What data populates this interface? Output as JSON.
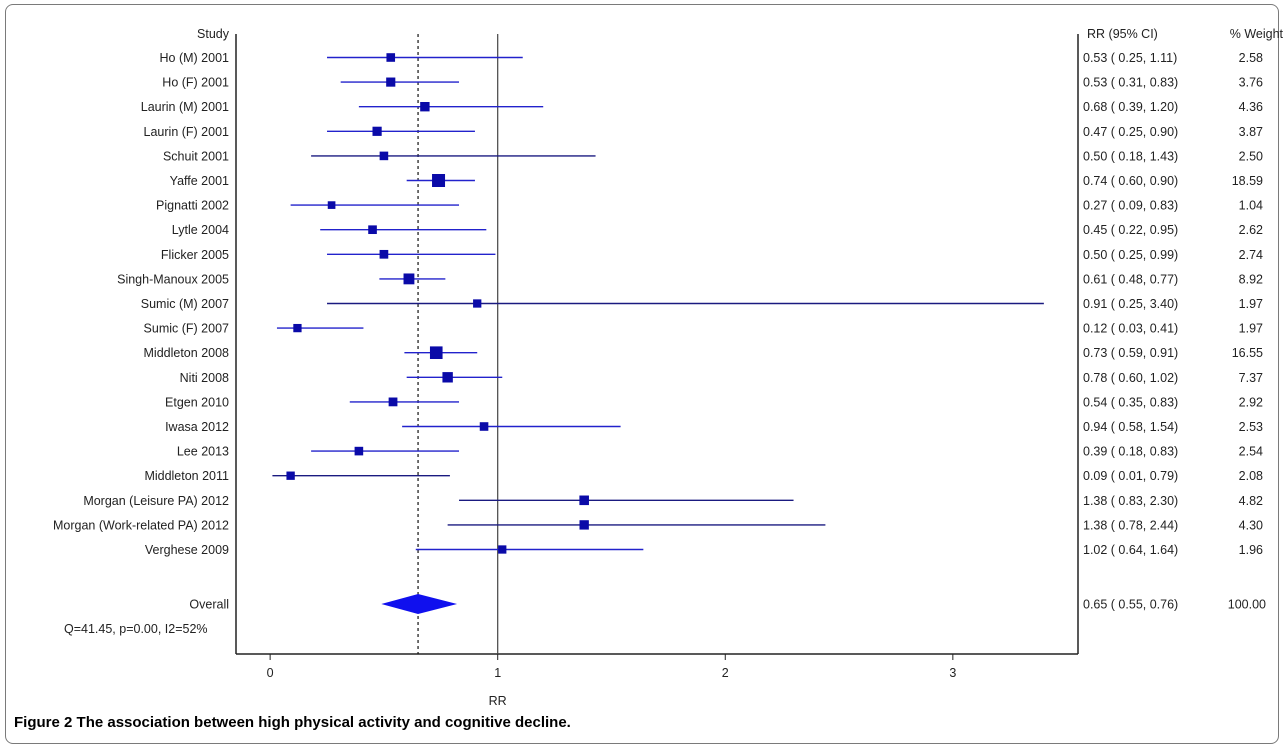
{
  "chart_data": {
    "type": "forest",
    "study_header": "Study",
    "rr_header": "RR (95% CI)",
    "weight_header": "% Weight",
    "xlabel": "RR",
    "xticks": [
      0,
      1,
      2,
      3
    ],
    "xlim": [
      -0.15,
      3.55
    ],
    "null_line": 1,
    "pooled_line": 0.65,
    "colors": {
      "ci": "#2222cc",
      "ci_dark": "#1a1a80",
      "marker": "#0a0aa8",
      "diamond": "#1010ee",
      "axis": "#222222"
    },
    "studies": [
      {
        "label": "Ho (M) 2001",
        "rr": 0.53,
        "lo": 0.25,
        "hi": 1.11,
        "ci_text": "0.53 ( 0.25, 1.11)",
        "weight": "2.58"
      },
      {
        "label": "Ho (F) 2001",
        "rr": 0.53,
        "lo": 0.31,
        "hi": 0.83,
        "ci_text": "0.53 ( 0.31, 0.83)",
        "weight": "3.76"
      },
      {
        "label": "Laurin (M) 2001",
        "rr": 0.68,
        "lo": 0.39,
        "hi": 1.2,
        "ci_text": "0.68 ( 0.39, 1.20)",
        "weight": "4.36"
      },
      {
        "label": "Laurin (F) 2001",
        "rr": 0.47,
        "lo": 0.25,
        "hi": 0.9,
        "ci_text": "0.47 ( 0.25, 0.90)",
        "weight": "3.87"
      },
      {
        "label": "Schuit 2001",
        "rr": 0.5,
        "lo": 0.18,
        "hi": 1.43,
        "ci_text": "0.50 ( 0.18, 1.43)",
        "weight": "2.50"
      },
      {
        "label": "Yaffe 2001",
        "rr": 0.74,
        "lo": 0.6,
        "hi": 0.9,
        "ci_text": "0.74 ( 0.60, 0.90)",
        "weight": "18.59"
      },
      {
        "label": "Pignatti 2002",
        "rr": 0.27,
        "lo": 0.09,
        "hi": 0.83,
        "ci_text": "0.27 ( 0.09, 0.83)",
        "weight": "1.04"
      },
      {
        "label": "Lytle 2004",
        "rr": 0.45,
        "lo": 0.22,
        "hi": 0.95,
        "ci_text": "0.45 ( 0.22, 0.95)",
        "weight": "2.62"
      },
      {
        "label": "Flicker 2005",
        "rr": 0.5,
        "lo": 0.25,
        "hi": 0.99,
        "ci_text": "0.50 ( 0.25, 0.99)",
        "weight": "2.74"
      },
      {
        "label": "Singh-Manoux 2005",
        "rr": 0.61,
        "lo": 0.48,
        "hi": 0.77,
        "ci_text": "0.61 ( 0.48, 0.77)",
        "weight": "8.92"
      },
      {
        "label": "Sumic (M) 2007",
        "rr": 0.91,
        "lo": 0.25,
        "hi": 3.4,
        "ci_text": "0.91 ( 0.25, 3.40)",
        "weight": "1.97"
      },
      {
        "label": "Sumic (F) 2007",
        "rr": 0.12,
        "lo": 0.03,
        "hi": 0.41,
        "ci_text": "0.12 ( 0.03, 0.41)",
        "weight": "1.97"
      },
      {
        "label": "Middleton 2008",
        "rr": 0.73,
        "lo": 0.59,
        "hi": 0.91,
        "ci_text": "0.73 ( 0.59, 0.91)",
        "weight": "16.55"
      },
      {
        "label": "Niti 2008",
        "rr": 0.78,
        "lo": 0.6,
        "hi": 1.02,
        "ci_text": "0.78 ( 0.60, 1.02)",
        "weight": "7.37"
      },
      {
        "label": "Etgen 2010",
        "rr": 0.54,
        "lo": 0.35,
        "hi": 0.83,
        "ci_text": "0.54 ( 0.35, 0.83)",
        "weight": "2.92"
      },
      {
        "label": "Iwasa 2012",
        "rr": 0.94,
        "lo": 0.58,
        "hi": 1.54,
        "ci_text": "0.94 ( 0.58, 1.54)",
        "weight": "2.53"
      },
      {
        "label": "Lee 2013",
        "rr": 0.39,
        "lo": 0.18,
        "hi": 0.83,
        "ci_text": "0.39 ( 0.18, 0.83)",
        "weight": "2.54"
      },
      {
        "label": "Middleton 2011",
        "rr": 0.09,
        "lo": 0.01,
        "hi": 0.79,
        "ci_text": "0.09 ( 0.01, 0.79)",
        "weight": "2.08"
      },
      {
        "label": "Morgan (Leisure PA) 2012",
        "rr": 1.38,
        "lo": 0.83,
        "hi": 2.3,
        "ci_text": "1.38 ( 0.83, 2.30)",
        "weight": "4.82"
      },
      {
        "label": "Morgan (Work-related PA) 2012",
        "rr": 1.38,
        "lo": 0.78,
        "hi": 2.44,
        "ci_text": "1.38 ( 0.78, 2.44)",
        "weight": "4.30"
      },
      {
        "label": "Verghese 2009",
        "rr": 1.02,
        "lo": 0.64,
        "hi": 1.64,
        "ci_text": "1.02 ( 0.64, 1.64)",
        "weight": "1.96"
      }
    ],
    "overall": {
      "label": "Overall",
      "rr": 0.65,
      "lo": 0.55,
      "hi": 0.76,
      "ci_text": "0.65 ( 0.55, 0.76)",
      "weight": "100.00"
    },
    "heterogeneity": "Q=41.45, p=0.00, I2=52%"
  },
  "caption": {
    "label": "Figure 2",
    "text": " The association between high physical activity and cognitive decline."
  }
}
